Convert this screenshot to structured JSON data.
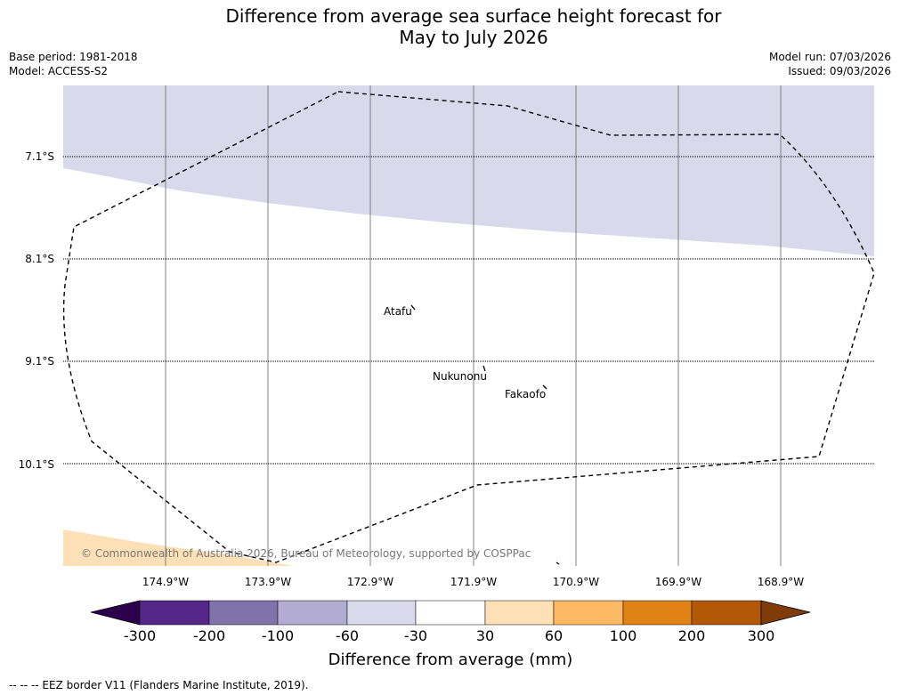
{
  "title": {
    "line1": "Difference from average sea surface height forecast for",
    "line2": "May to July 2026"
  },
  "meta": {
    "base_period": "Base period: 1981-2018",
    "model": "Model: ACCESS-S2",
    "model_run": "Model run: 07/03/2026",
    "issued": "Issued: 09/03/2026"
  },
  "map": {
    "lat_labels": [
      "7.1°S",
      "8.1°S",
      "9.1°S",
      "10.1°S"
    ],
    "lon_labels": [
      "174.9°W",
      "173.9°W",
      "172.9°W",
      "171.9°W",
      "170.9°W",
      "169.9°W",
      "168.9°W"
    ],
    "places": [
      "Atafu",
      "Nukunonu",
      "Fakaofo"
    ],
    "copyright": "© Commonwealth of Australia 2026, Bureau of Meteorology, supported by COSPPac",
    "colors": {
      "anomaly_neg_30_60": "#d8d9ea",
      "anomaly_pos_30_60": "#fee0b6",
      "gridline": "#808080"
    }
  },
  "colorbar": {
    "title": "Difference from average (mm)",
    "tick_labels": [
      "-300",
      "-200",
      "-100",
      "-60",
      "-30",
      "30",
      "60",
      "100",
      "200",
      "300"
    ],
    "colors": [
      "#2d004b",
      "#542788",
      "#8073ac",
      "#b2abd2",
      "#d8daeb",
      "#ffffff",
      "#fee0b6",
      "#fdb863",
      "#e08214",
      "#b35806",
      "#7f3b08"
    ]
  },
  "footnote": "--  --  -- EEZ border V11 (Flanders Marine Institute, 2019)."
}
